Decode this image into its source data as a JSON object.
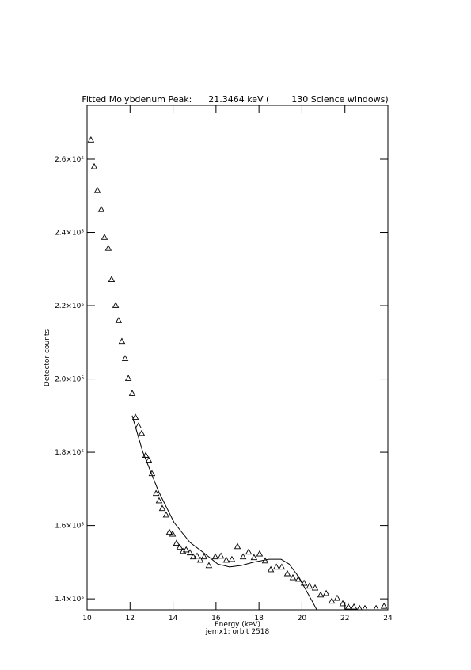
{
  "chart_data": {
    "type": "scatter",
    "title": "Fitted Molybdenum Peak:      21.3464 keV (        130 Science windows)",
    "x_label": "Energy (keV)",
    "subtitle": "jemx1: orbit 2518",
    "y_label": "Detector counts",
    "xlim": [
      10,
      24
    ],
    "xticks": [
      10,
      12,
      14,
      16,
      18,
      20,
      22,
      24
    ],
    "ylim": [
      137000,
      274700
    ],
    "yticks": [
      {
        "value": 140000,
        "label": "1.4×10⁵"
      },
      {
        "value": 160000,
        "label": "1.6×10⁵"
      },
      {
        "value": 180000,
        "label": "1.8×10⁵"
      },
      {
        "value": 200000,
        "label": "2.0×10⁵"
      },
      {
        "value": 220000,
        "label": "2.2×10⁵"
      },
      {
        "value": 240000,
        "label": "2.4×10⁵"
      },
      {
        "value": 260000,
        "label": "2.6×10⁵"
      }
    ],
    "series": [
      {
        "type": "scatter",
        "marker": "triangle",
        "color": "#000000",
        "x": [
          10.18,
          10.33,
          10.48,
          10.66,
          10.81,
          10.99,
          11.14,
          11.33,
          11.47,
          11.62,
          11.77,
          11.92,
          12.1,
          12.25,
          12.39,
          12.54,
          12.73,
          12.87,
          13.02,
          13.21,
          13.35,
          13.5,
          13.68,
          13.83,
          13.98,
          14.16,
          14.31,
          14.46,
          14.61,
          14.79,
          14.94,
          15.12,
          15.27,
          15.45,
          15.67,
          15.97,
          16.23,
          16.48,
          16.74,
          17.0,
          17.26,
          17.52,
          17.77,
          18.03,
          18.29,
          18.55,
          18.81,
          19.06,
          19.32,
          19.58,
          19.84,
          20.1,
          20.35,
          20.61,
          20.87,
          21.13,
          21.39,
          21.64,
          21.9,
          22.16,
          22.42,
          22.68,
          22.93,
          23.45,
          23.82
        ],
        "values": [
          265300,
          258000,
          251500,
          246300,
          238700,
          235700,
          227200,
          220100,
          216000,
          210300,
          205600,
          200200,
          196100,
          189600,
          187200,
          185200,
          179200,
          177900,
          174200,
          168800,
          166800,
          164700,
          162900,
          158200,
          157700,
          155200,
          154100,
          153000,
          153400,
          152600,
          151500,
          151700,
          150600,
          151500,
          149100,
          151500,
          151700,
          150600,
          150800,
          154300,
          151500,
          152800,
          151300,
          152300,
          150400,
          148000,
          148700,
          148700,
          146900,
          145800,
          145400,
          144300,
          143500,
          143000,
          141100,
          141500,
          139400,
          140200,
          138700,
          137800,
          137800,
          137400,
          137400,
          137400,
          138000
        ]
      },
      {
        "type": "line",
        "color": "#000000",
        "x": [
          12.1,
          12.58,
          13.32,
          14.05,
          14.79,
          15.53,
          16.08,
          16.63,
          17.18,
          17.74,
          18.47,
          19.03,
          19.4,
          19.76,
          20.13,
          20.5,
          20.69
        ],
        "values": [
          190000,
          180300,
          169400,
          160800,
          155400,
          152100,
          149500,
          148700,
          149100,
          150000,
          150800,
          150800,
          149500,
          146700,
          143000,
          139100,
          137000
        ]
      }
    ]
  }
}
